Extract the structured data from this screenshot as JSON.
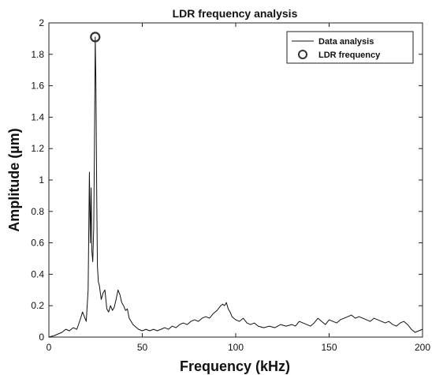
{
  "chart_data": {
    "type": "line",
    "title": "LDR frequency analysis",
    "xlabel": "Frequency (kHz)",
    "ylabel": "Amplitude (µm)",
    "xlim": [
      0,
      200
    ],
    "ylim": [
      0,
      2
    ],
    "x_ticks": [
      "0",
      "50",
      "100",
      "150",
      "200"
    ],
    "y_ticks": [
      "0",
      "0.2",
      "0.4",
      "0.6",
      "0.8",
      "1",
      "1.2",
      "1.4",
      "1.6",
      "1.8",
      "2"
    ],
    "grid": false,
    "legend_position": "top-right",
    "series": [
      {
        "name": "Data analysis",
        "kind": "line",
        "color": "#111111",
        "x": [
          0,
          3,
          5,
          7,
          9,
          11,
          13,
          15,
          17,
          18,
          19,
          20,
          21,
          21.7,
          22.2,
          22.6,
          23,
          23.5,
          24,
          24.4,
          24.8,
          25.2,
          25.6,
          26,
          26.5,
          27,
          28,
          29,
          30,
          31,
          32,
          33,
          34,
          35,
          36,
          37,
          38,
          39,
          40,
          41,
          42,
          43,
          44,
          45,
          46,
          47,
          48,
          50,
          52,
          54,
          56,
          58,
          60,
          62,
          64,
          66,
          68,
          70,
          72,
          74,
          76,
          78,
          80,
          82,
          84,
          86,
          88,
          90,
          92,
          93,
          94,
          95,
          96,
          97,
          98,
          100,
          102,
          104,
          106,
          108,
          110,
          112,
          115,
          118,
          121,
          124,
          127,
          130,
          132,
          134,
          136,
          138,
          140,
          142,
          144,
          146,
          148,
          150,
          152,
          154,
          156,
          158,
          160,
          162,
          164,
          166,
          168,
          170,
          172,
          174,
          176,
          178,
          180,
          182,
          184,
          186,
          188,
          190,
          192,
          194,
          196,
          198,
          200
        ],
        "y": [
          0,
          0.01,
          0.02,
          0.03,
          0.05,
          0.04,
          0.06,
          0.05,
          0.12,
          0.16,
          0.13,
          0.1,
          0.3,
          1.05,
          0.6,
          0.95,
          0.55,
          0.48,
          0.7,
          1.2,
          1.91,
          1.6,
          0.9,
          0.45,
          0.35,
          0.33,
          0.24,
          0.28,
          0.3,
          0.18,
          0.16,
          0.2,
          0.17,
          0.19,
          0.24,
          0.3,
          0.27,
          0.22,
          0.2,
          0.17,
          0.18,
          0.12,
          0.1,
          0.08,
          0.07,
          0.06,
          0.05,
          0.04,
          0.05,
          0.04,
          0.05,
          0.04,
          0.05,
          0.06,
          0.05,
          0.07,
          0.06,
          0.08,
          0.09,
          0.08,
          0.1,
          0.11,
          0.1,
          0.12,
          0.13,
          0.12,
          0.15,
          0.17,
          0.2,
          0.21,
          0.2,
          0.22,
          0.18,
          0.16,
          0.13,
          0.11,
          0.1,
          0.12,
          0.09,
          0.08,
          0.09,
          0.07,
          0.06,
          0.07,
          0.06,
          0.08,
          0.07,
          0.08,
          0.07,
          0.1,
          0.09,
          0.08,
          0.07,
          0.09,
          0.12,
          0.1,
          0.08,
          0.11,
          0.1,
          0.09,
          0.11,
          0.12,
          0.13,
          0.14,
          0.12,
          0.13,
          0.12,
          0.11,
          0.1,
          0.12,
          0.11,
          0.1,
          0.09,
          0.1,
          0.08,
          0.07,
          0.09,
          0.1,
          0.08,
          0.05,
          0.03,
          0.04,
          0.05
        ]
      },
      {
        "name": "LDR frequency",
        "kind": "marker",
        "marker": "circle",
        "color": "#333333",
        "x": [
          24.8
        ],
        "y": [
          1.91
        ]
      }
    ]
  }
}
